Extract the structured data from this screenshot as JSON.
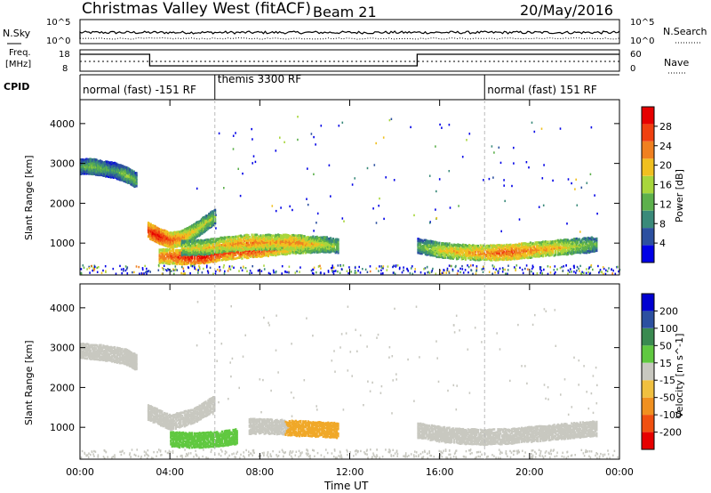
{
  "header": {
    "station": "Christmas Valley West (fitACF)",
    "beam": "Beam 21",
    "date": "20/May/2016"
  },
  "top_strips": {
    "nsky_label": "N.Sky",
    "nsearch_label": "N.Search",
    "freq_label_line1": "Freq.",
    "freq_label_line2": "[MHz]",
    "nave_label": "Nave",
    "cpid_label": "CPID",
    "nsky_ticks": [
      "10^5",
      "10^0"
    ],
    "nsearch_ticks": [
      "10^5",
      "10^0"
    ],
    "freq_ticks": [
      "18",
      "8"
    ],
    "nave_ticks": [
      "60",
      "0"
    ],
    "cpid_segments": [
      {
        "label": "normal (fast) -151 RF",
        "start_h": 0,
        "end_h": 6
      },
      {
        "label": "themis 3300 RF",
        "start_h": 6,
        "end_h": 18
      },
      {
        "label": "normal (fast) 151 RF",
        "start_h": 18,
        "end_h": 24
      }
    ]
  },
  "colors": {
    "power_scale": [
      "#0000e6",
      "#2c50a0",
      "#3a8a7a",
      "#5db04c",
      "#a8d63c",
      "#f0c020",
      "#f08020",
      "#f04010",
      "#e60000"
    ],
    "velocity_scale": [
      "#e60000",
      "#f05010",
      "#f09020",
      "#f0c040",
      "#c8c8c0",
      "#60c840",
      "#3a8a50",
      "#2c50a0",
      "#0000d0"
    ]
  },
  "chart_data": [
    {
      "type": "heatmap",
      "title": "",
      "ylabel": "Slant Range [km]",
      "xlabel": "",
      "xlim": [
        0,
        24
      ],
      "ylim": [
        200,
        4600
      ],
      "yticks": [
        "1000",
        "2000",
        "3000",
        "4000"
      ],
      "colorbar_label": "Power [dB]",
      "colorbar_ticks": [
        "4",
        "8",
        "12",
        "16",
        "20",
        "24",
        "28"
      ],
      "colorbar_range": [
        0,
        30
      ],
      "series": [
        {
          "x": [
            0.0,
            0.5,
            1.0,
            1.5,
            2.0,
            2.5
          ],
          "y": [
            2950,
            2950,
            2900,
            2850,
            2750,
            2600
          ],
          "values": [
            10,
            14,
            12,
            10,
            14,
            12
          ]
        },
        {
          "x": [
            3.0,
            3.5,
            4.0,
            4.5,
            5.0,
            5.5,
            6.0
          ],
          "y": [
            1350,
            1200,
            1100,
            1150,
            1300,
            1500,
            1700
          ],
          "values": [
            26,
            28,
            24,
            22,
            18,
            16,
            14
          ]
        },
        {
          "x": [
            3.5,
            4.5,
            5.5,
            6.5,
            7.5,
            8.5,
            9.5,
            10.5,
            11.0
          ],
          "y": [
            700,
            680,
            700,
            800,
            850,
            900,
            950,
            980,
            1000
          ],
          "values": [
            22,
            26,
            28,
            24,
            26,
            24,
            20,
            18,
            16
          ]
        },
        {
          "x": [
            4.5,
            5.5,
            6.5,
            7.5,
            8.5,
            9.5,
            10.5,
            11.5
          ],
          "y": [
            900,
            920,
            1000,
            1050,
            1050,
            1050,
            1000,
            950
          ],
          "values": [
            16,
            18,
            20,
            22,
            20,
            22,
            18,
            14
          ]
        },
        {
          "x": [
            15.0,
            16.0,
            17.0,
            18.0,
            19.0,
            20.0,
            21.0,
            22.0,
            23.0
          ],
          "y": [
            950,
            850,
            800,
            780,
            800,
            850,
            900,
            950,
            1000
          ],
          "values": [
            12,
            18,
            20,
            22,
            24,
            22,
            20,
            16,
            12
          ]
        }
      ]
    },
    {
      "type": "heatmap",
      "title": "",
      "ylabel": "Slant Range [km]",
      "xlabel": "Time UT",
      "xlim": [
        0,
        24
      ],
      "ylim": [
        200,
        4600
      ],
      "xticks": [
        "00:00",
        "04:00",
        "08:00",
        "12:00",
        "16:00",
        "20:00",
        "00:00"
      ],
      "yticks": [
        "1000",
        "2000",
        "3000",
        "4000"
      ],
      "colorbar_label": "Velocity [m s^-1]",
      "colorbar_ticks": [
        "200",
        "100",
        "50",
        "15",
        "-15",
        "-50",
        "-100",
        "-200"
      ],
      "colorbar_range": [
        -250,
        250
      ],
      "series": [
        {
          "x": [
            0.0,
            1.0,
            2.0,
            2.5
          ],
          "y": [
            2950,
            2900,
            2800,
            2650
          ],
          "values": [
            0,
            0,
            0,
            0
          ]
        },
        {
          "x": [
            3.0,
            4.0,
            5.0,
            6.0
          ],
          "y": [
            1400,
            1150,
            1300,
            1650
          ],
          "values": [
            0,
            0,
            0,
            0
          ]
        },
        {
          "x": [
            4.0,
            5.0,
            6.0,
            7.0
          ],
          "y": [
            720,
            700,
            720,
            800
          ],
          "values": [
            60,
            60,
            40,
            40
          ]
        },
        {
          "x": [
            7.5,
            8.5,
            9.5,
            10.5,
            11.5
          ],
          "y": [
            1050,
            1050,
            1000,
            980,
            950
          ],
          "values": [
            0,
            0,
            -40,
            -60,
            -60
          ]
        },
        {
          "x": [
            15.0,
            16.0,
            17.0,
            18.0,
            19.0,
            20.0,
            21.0,
            22.0,
            23.0
          ],
          "y": [
            950,
            850,
            800,
            780,
            800,
            850,
            900,
            950,
            1000
          ],
          "values": [
            0,
            0,
            0,
            0,
            0,
            0,
            0,
            0,
            0
          ]
        }
      ]
    }
  ]
}
